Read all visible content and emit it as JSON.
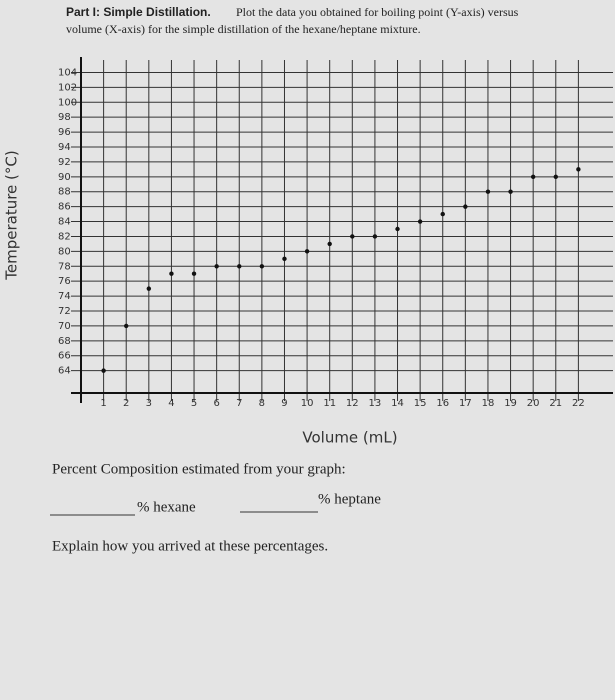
{
  "heading": "Part I: Simple Distillation.",
  "instructions_1": "Plot the data you obtained for boiling point (Y-axis) versus",
  "instructions_2": "volume (X-axis) for the simple distillation of the hexane/heptane mixture.",
  "percent_prompt": "Percent Composition estimated from your graph:",
  "hexane_label": "% hexane",
  "heptane_label": "% heptane",
  "explain_prompt": "Explain how you arrived at these percentages.",
  "chart_data": {
    "type": "scatter",
    "x_label": "Volume (mL)",
    "y_label": "Temperature (°C)",
    "x": [
      1,
      2,
      3,
      4,
      5,
      6,
      7,
      8,
      9,
      10,
      11,
      12,
      13,
      14,
      15,
      16,
      17,
      18,
      19,
      20,
      21,
      22
    ],
    "values": [
      64,
      70,
      75,
      77,
      77,
      78,
      78,
      78,
      79,
      80,
      81,
      82,
      82,
      83,
      84,
      85,
      86,
      88,
      88,
      90,
      90,
      91
    ],
    "color": "#111111",
    "xlim": [
      0,
      23
    ],
    "ylim": [
      61,
      105
    ],
    "xticks": [
      1,
      2,
      3,
      4,
      5,
      6,
      7,
      8,
      9,
      10,
      11,
      12,
      13,
      14,
      15,
      16,
      17,
      18,
      19,
      20,
      21,
      22
    ],
    "yticks": [
      64,
      66,
      68,
      70,
      72,
      74,
      76,
      78,
      80,
      82,
      84,
      86,
      88,
      90,
      92,
      94,
      96,
      98,
      100,
      102,
      104
    ],
    "grid": true
  }
}
